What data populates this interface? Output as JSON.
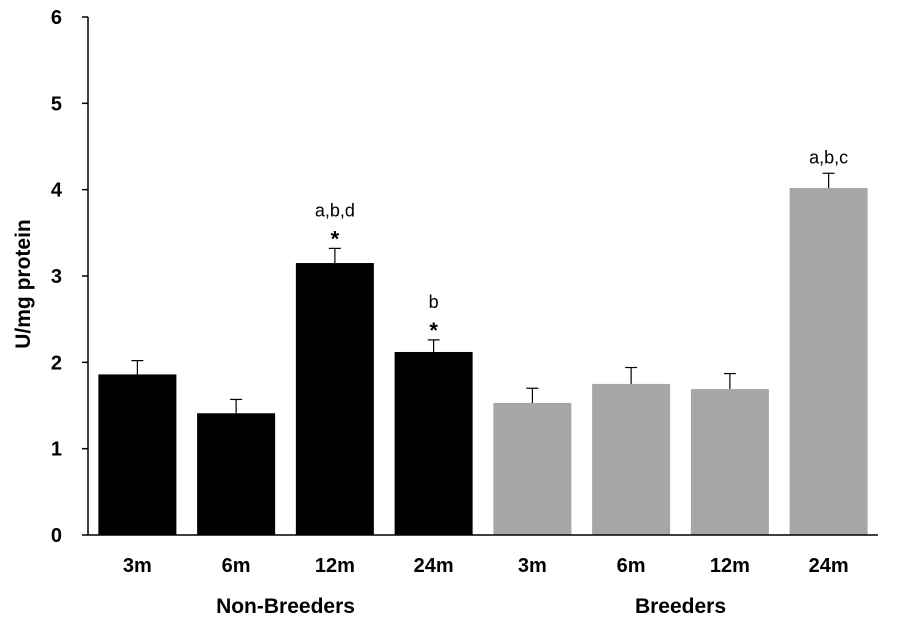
{
  "chart_data": {
    "type": "bar",
    "title": "",
    "xlabel": "",
    "ylabel": "U/mg protein",
    "ylim": [
      0,
      6
    ],
    "yticks": [
      0,
      1,
      2,
      3,
      4,
      5,
      6
    ],
    "grid": false,
    "categories": [
      "3m",
      "6m",
      "12m",
      "24m",
      "3m",
      "6m",
      "12m",
      "24m"
    ],
    "groups": [
      {
        "label": "Non-Breeders",
        "count": 4,
        "color": "#000000"
      },
      {
        "label": "Breeders",
        "count": 4,
        "color": "#a6a6a6"
      }
    ],
    "values": [
      1.86,
      1.41,
      3.15,
      2.12,
      1.53,
      1.75,
      1.69,
      4.02
    ],
    "errors": [
      0.16,
      0.16,
      0.17,
      0.14,
      0.17,
      0.19,
      0.18,
      0.17
    ],
    "annotations": [
      "",
      "",
      "a,b,d",
      "b",
      "",
      "",
      "",
      "a,b,c"
    ],
    "significance_markers": [
      "",
      "",
      "*",
      "*",
      "",
      "",
      "",
      ""
    ]
  }
}
